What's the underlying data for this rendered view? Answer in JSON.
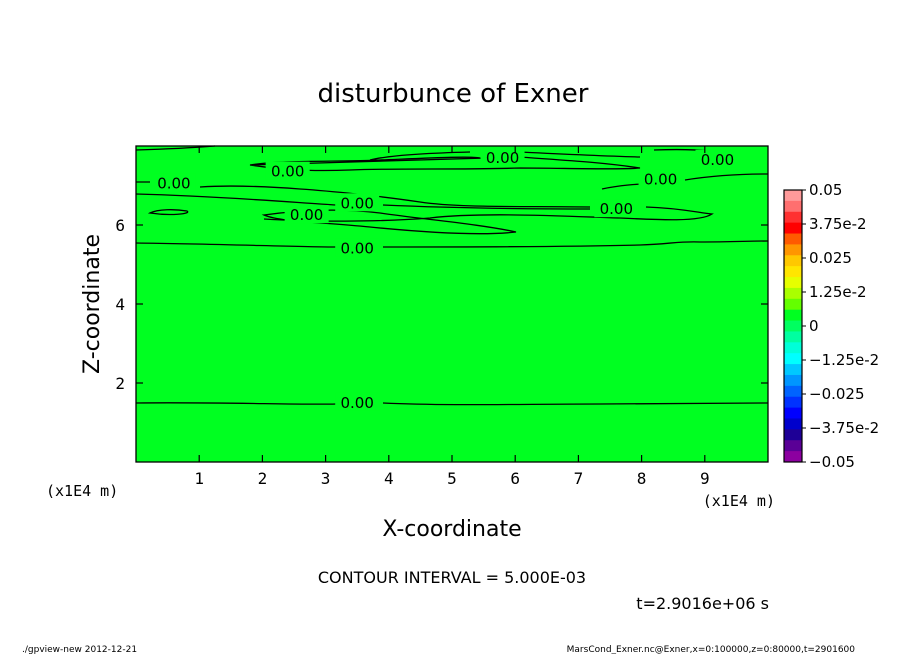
{
  "chart_data": {
    "type": "contour",
    "title": "disturbunce of Exner",
    "xlabel": "X-coordinate",
    "ylabel": "Z-coordinate",
    "x_unit": "(x1E4 m)",
    "z_unit": "(x1E4 m)",
    "xlim": [
      0,
      10
    ],
    "ylim": [
      0,
      8
    ],
    "x_ticks": [
      "1",
      "2",
      "3",
      "4",
      "5",
      "6",
      "7",
      "8",
      "9"
    ],
    "y_ticks": [
      "2",
      "4",
      "6"
    ],
    "field_value": 0,
    "contour_interval_label": "CONTOUR INTERVAL = 5.000E-03",
    "time_label": "t=2.9016e+06 s",
    "contour_labels": [
      {
        "text": "0.00",
        "x": 2.4,
        "z": 7.35
      },
      {
        "text": "0.00",
        "x": 5.8,
        "z": 7.7
      },
      {
        "text": "0.00",
        "x": 9.2,
        "z": 7.65
      },
      {
        "text": "0.00",
        "x": 0.6,
        "z": 7.05
      },
      {
        "text": "0.00",
        "x": 8.3,
        "z": 7.15
      },
      {
        "text": "0.00",
        "x": 3.5,
        "z": 6.55
      },
      {
        "text": "0.00",
        "x": 7.6,
        "z": 6.4
      },
      {
        "text": "0.00",
        "x": 2.7,
        "z": 6.25
      },
      {
        "text": "0.00",
        "x": 3.5,
        "z": 5.4
      },
      {
        "text": "0.00",
        "x": 3.5,
        "z": 1.5
      }
    ],
    "colorbar": {
      "labels": [
        "0.05",
        "3.75e-2",
        "0.025",
        "1.25e-2",
        "0",
        "−1.25e-2",
        "−0.025",
        "−3.75e-2",
        "−0.05"
      ],
      "min": -0.05,
      "max": 0.05,
      "colors_top_to_bottom": [
        "#ff9a9a",
        "#ff6f6f",
        "#ff3030",
        "#ff0000",
        "#ff5a00",
        "#ff9600",
        "#ffc800",
        "#ffe600",
        "#e6ff00",
        "#aaff00",
        "#64ff00",
        "#00ff21",
        "#00ff60",
        "#00ffa0",
        "#00ffd8",
        "#00ffff",
        "#00c8ff",
        "#0096ff",
        "#0064ff",
        "#0032ff",
        "#0000ff",
        "#0000cc",
        "#1e0096",
        "#5a0096",
        "#8c00a0"
      ]
    }
  },
  "footer": {
    "left": "./gpview-new  2012-12-21",
    "right": "MarsCond_Exner.nc@Exner,x=0:100000,z=0:80000,t=2901600"
  },
  "colors": {
    "field": "#00ff21",
    "contour": "#000000"
  }
}
